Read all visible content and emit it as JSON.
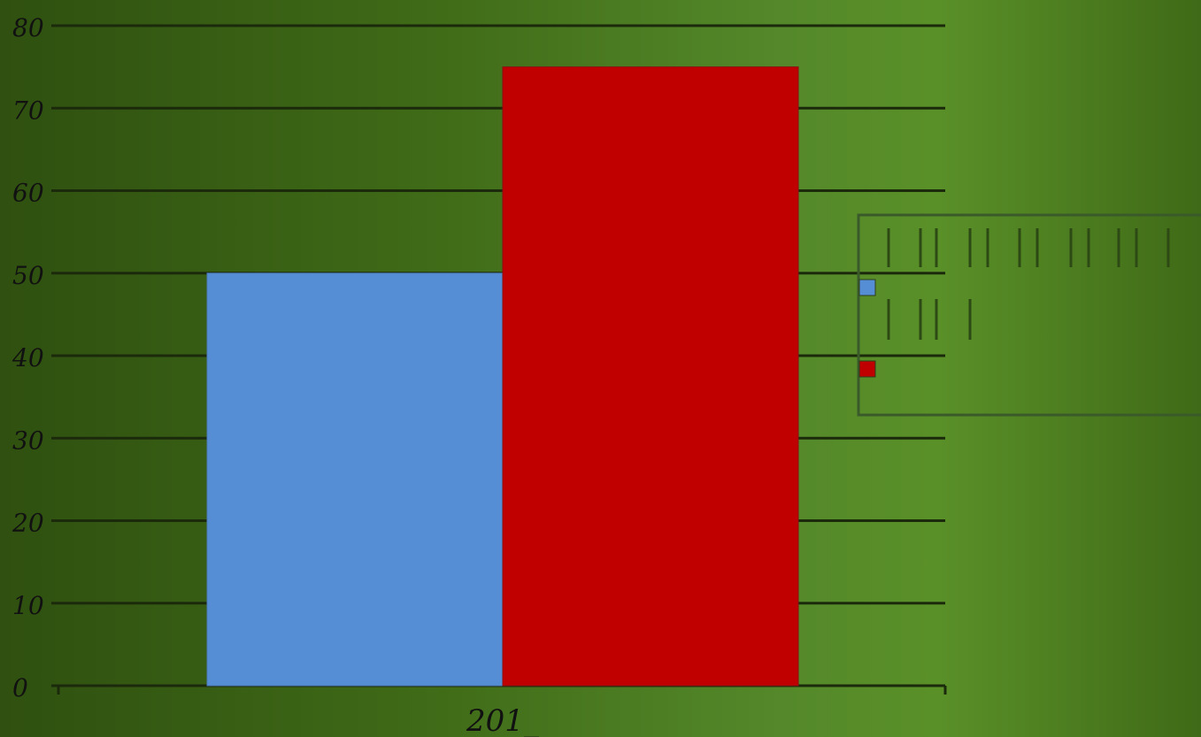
{
  "chart_data": {
    "type": "bar",
    "categories": [
      "201_"
    ],
    "series": [
      {
        "color": "#558ed5",
        "values": [
          50
        ]
      },
      {
        "color": "#c00000",
        "values": [
          75
        ]
      }
    ],
    "ylim": [
      0,
      80
    ],
    "yticks": [
      "0",
      "10",
      "20",
      "30",
      "40",
      "50",
      "60",
      "70",
      "80"
    ],
    "grid": true,
    "legend": "right"
  }
}
